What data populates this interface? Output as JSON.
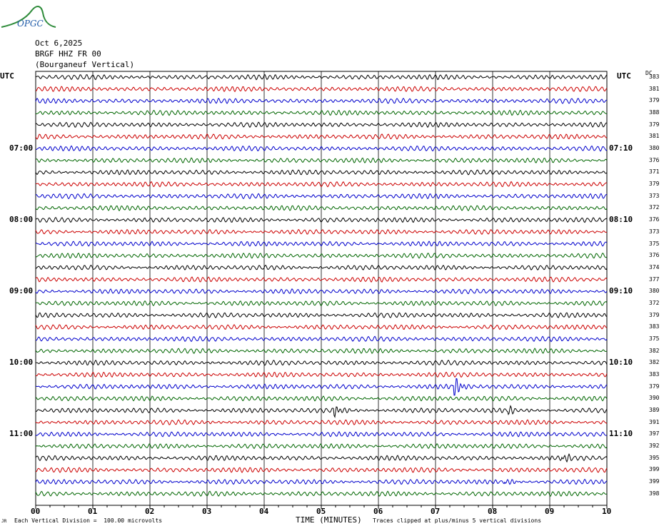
{
  "header": {
    "logo_text": "OPGC",
    "date": "Oct 6,2025",
    "station": "BRGF HHZ FR 00",
    "location": "(Bourganeuf Vertical)"
  },
  "axis": {
    "left_unit": "UTC",
    "right_unit": "UTC",
    "dc_header": "DC",
    "xlabel": "TIME (MINUTES)",
    "footer_left": "Each Vertical Division =  100.00 microvolts",
    "footer_right": "Traces clipped at plus/minus 5 vertical divisions",
    "footer_mark": "JR"
  },
  "chart_data": {
    "type": "line",
    "title": "",
    "xlabel": "TIME (MINUTES)",
    "x_ticks": [
      "00",
      "01",
      "02",
      "03",
      "04",
      "05",
      "06",
      "07",
      "08",
      "09",
      "10"
    ],
    "xlim": [
      0,
      10
    ],
    "grid": true,
    "trace_colors": [
      "#000000",
      "#cc0000",
      "#0000cc",
      "#006600"
    ],
    "left_time_labels": [
      {
        "label": "07:00",
        "row": 6
      },
      {
        "label": "08:00",
        "row": 12
      },
      {
        "label": "09:00",
        "row": 18
      },
      {
        "label": "10:00",
        "row": 24
      },
      {
        "label": "11:00",
        "row": 30
      }
    ],
    "right_time_labels": [
      {
        "label": "07:10",
        "row": 6
      },
      {
        "label": "08:10",
        "row": 12
      },
      {
        "label": "09:10",
        "row": 18
      },
      {
        "label": "10:10",
        "row": 24
      },
      {
        "label": "11:10",
        "row": 30
      }
    ],
    "dc_offsets": [
      "383",
      "381",
      "379",
      "388",
      "379",
      "381",
      "380",
      "376",
      "371",
      "379",
      "373",
      "372",
      "376",
      "373",
      "375",
      "376",
      "374",
      "377",
      "380",
      "372",
      "379",
      "383",
      "375",
      "382",
      "382",
      "383",
      "379",
      "390",
      "389",
      "391",
      "397",
      "392",
      "395",
      "399",
      "399",
      "398"
    ],
    "events": [
      {
        "row": 26,
        "minute": 7.35,
        "amplitude": 3
      },
      {
        "row": 28,
        "minute": 5.25,
        "amplitude": 2
      },
      {
        "row": 28,
        "minute": 8.3,
        "amplitude": 1
      },
      {
        "row": 32,
        "minute": 9.25,
        "amplitude": 1
      },
      {
        "row": 34,
        "minute": 8.25,
        "amplitude": 1
      }
    ]
  }
}
